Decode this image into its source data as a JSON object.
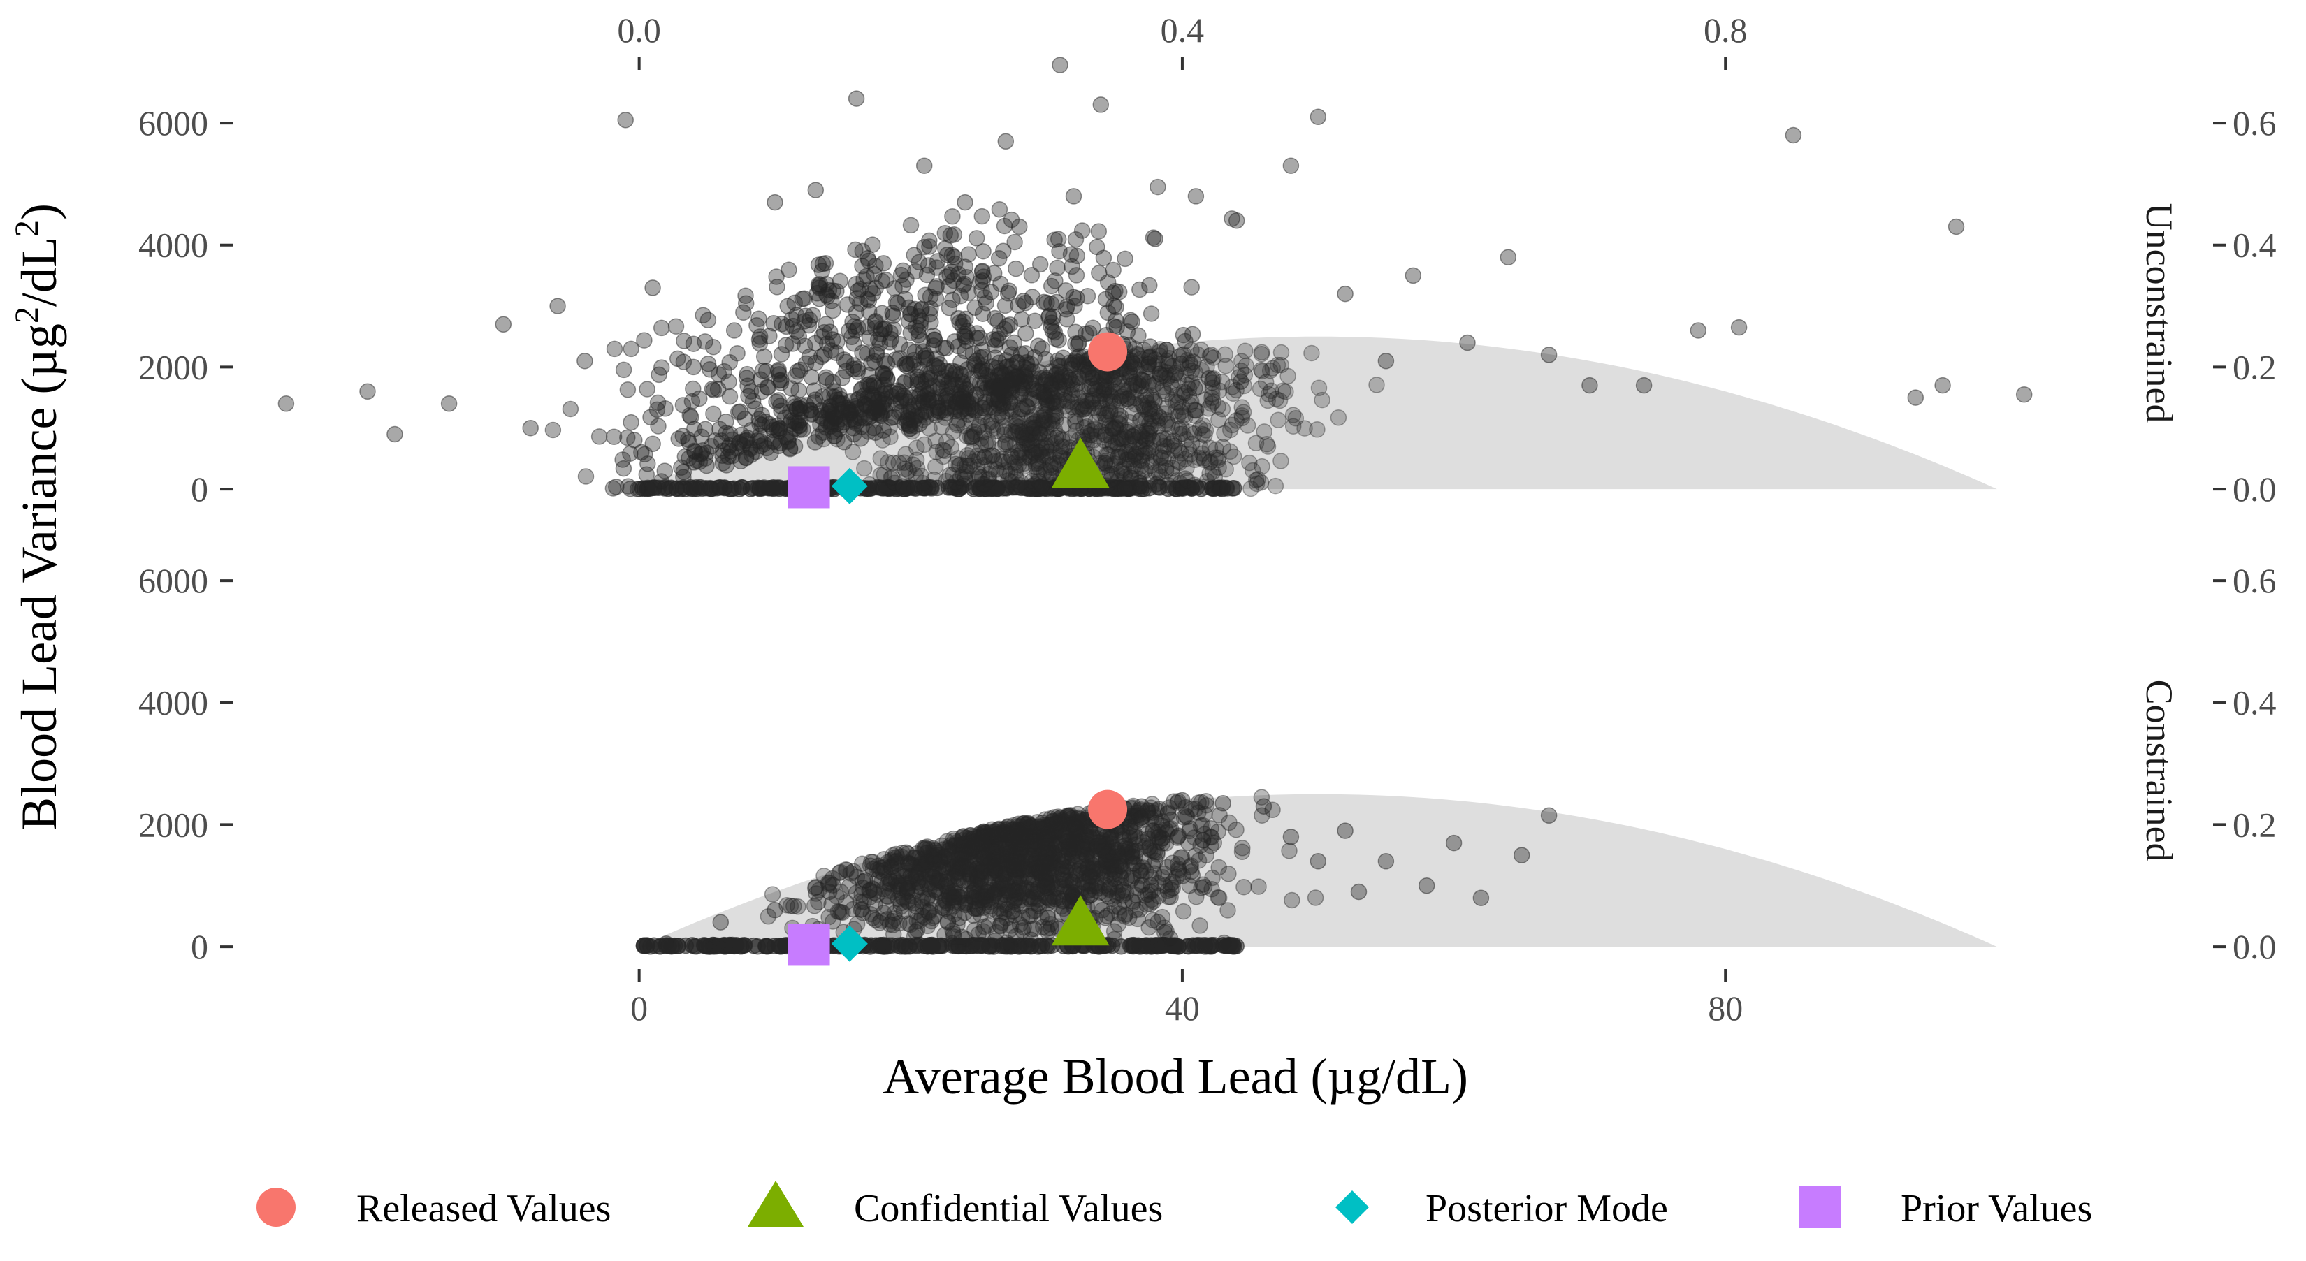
{
  "chart_data": {
    "type": "scatter",
    "xlabel": "Average Blood Lead (µg/dL)",
    "ylabel": "Blood Lead Variance (µg²/dL²)",
    "ylabel_parts": {
      "pre": "Blood Lead Variance (µg",
      "sup1": "2",
      "mid": "/dL",
      "sup2": "2",
      "post": ")"
    },
    "x_ticks": [
      "0",
      "40",
      "80"
    ],
    "x_tick_values": [
      0,
      40,
      80
    ],
    "top_x_ticks": [
      "0.0",
      "0.4",
      "0.8"
    ],
    "top_x_tick_values": [
      0.0,
      0.4,
      0.8
    ],
    "y_ticks": [
      "0",
      "2000",
      "4000",
      "6000"
    ],
    "y_tick_values": [
      0,
      2000,
      4000,
      6000
    ],
    "right_y_ticks": [
      "0.0",
      "0.2",
      "0.4",
      "0.6"
    ],
    "right_y_tick_values": [
      0.0,
      0.2,
      0.4,
      0.6
    ],
    "xlim": [
      -27,
      105
    ],
    "ylim": [
      -400,
      7100
    ],
    "top_xlim": [
      -0.27,
      1.05
    ],
    "right_ylim": [
      -0.04,
      0.71
    ],
    "feasible_region": {
      "x_max": 100,
      "curve": "variance = mean * (100 - mean)",
      "color": "#dedede"
    },
    "point_color": "#262626",
    "facets": [
      {
        "label": "Unconstrained",
        "points_summary": "several thousand simulated points, dense near zero variance along 0–45 µg/dL, spread up to ~7000",
        "sample_points": [
          [
            -26,
            1400
          ],
          [
            -20,
            1600
          ],
          [
            -18,
            900
          ],
          [
            -14,
            1400
          ],
          [
            -10,
            2700
          ],
          [
            -8,
            1000
          ],
          [
            -6,
            3000
          ],
          [
            -4,
            2100
          ],
          [
            -1,
            6050
          ],
          [
            1,
            3300
          ],
          [
            4,
            2000
          ],
          [
            7,
            2600
          ],
          [
            10,
            4700
          ],
          [
            13,
            4900
          ],
          [
            16,
            6400
          ],
          [
            18,
            3700
          ],
          [
            21,
            5300
          ],
          [
            24,
            4700
          ],
          [
            27,
            5700
          ],
          [
            28,
            4300
          ],
          [
            31,
            6950
          ],
          [
            32,
            4800
          ],
          [
            34,
            6300
          ],
          [
            38,
            4100
          ],
          [
            41,
            4800
          ],
          [
            44,
            4400
          ],
          [
            48,
            5300
          ],
          [
            50,
            6100
          ],
          [
            52,
            3200
          ],
          [
            55,
            2100
          ],
          [
            57,
            3500
          ],
          [
            61,
            2400
          ],
          [
            64,
            3800
          ],
          [
            67,
            2200
          ],
          [
            70,
            1700
          ],
          [
            74,
            1700
          ],
          [
            78,
            2600
          ],
          [
            81,
            2650
          ],
          [
            85,
            5800
          ],
          [
            94,
            1500
          ],
          [
            96,
            1700
          ],
          [
            97,
            4300
          ],
          [
            102,
            1550
          ]
        ],
        "markers": {
          "released": [
            34.5,
            2250
          ],
          "confidential": [
            32.5,
            350
          ],
          "posterior_mode": [
            15.5,
            50
          ],
          "prior": [
            12.5,
            30
          ]
        }
      },
      {
        "label": "Constrained",
        "points_summary": "points confined within the feasible region under the curve",
        "sample_points": [
          [
            2,
            50
          ],
          [
            6,
            400
          ],
          [
            10,
            600
          ],
          [
            14,
            900
          ],
          [
            18,
            1300
          ],
          [
            22,
            1500
          ],
          [
            25,
            1800
          ],
          [
            28,
            1900
          ],
          [
            31,
            2050
          ],
          [
            34,
            2200
          ],
          [
            37,
            2300
          ],
          [
            40,
            2400
          ],
          [
            43,
            2350
          ],
          [
            46,
            2300
          ],
          [
            48,
            1800
          ],
          [
            50,
            1400
          ],
          [
            52,
            1900
          ],
          [
            53,
            900
          ],
          [
            55,
            1400
          ],
          [
            58,
            1000
          ],
          [
            60,
            1700
          ],
          [
            62,
            800
          ],
          [
            65,
            1500
          ],
          [
            67,
            2150
          ]
        ],
        "markers": {
          "released": [
            34.5,
            2250
          ],
          "confidential": [
            32.5,
            350
          ],
          "posterior_mode": [
            15.5,
            50
          ],
          "prior": [
            12.5,
            30
          ]
        }
      }
    ],
    "legend": {
      "position": "bottom",
      "items": [
        {
          "key": "released",
          "label": "Released Values",
          "shape": "circle",
          "color": "#f8766d"
        },
        {
          "key": "confidential",
          "label": "Confidential Values",
          "shape": "triangle",
          "color": "#7cae00"
        },
        {
          "key": "posterior_mode",
          "label": "Posterior Mode",
          "shape": "diamond",
          "color": "#00bfc4"
        },
        {
          "key": "prior",
          "label": "Prior Values",
          "shape": "square",
          "color": "#c77cff"
        }
      ]
    }
  }
}
